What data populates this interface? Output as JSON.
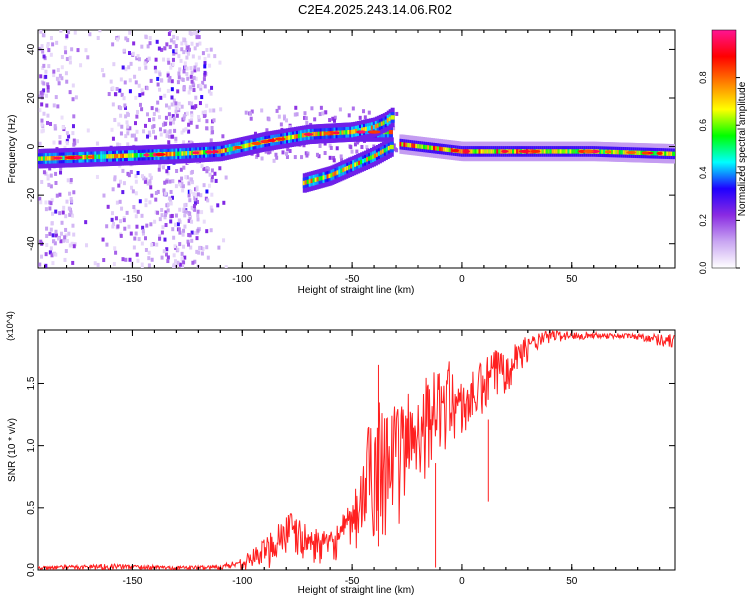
{
  "title": "C2E4.2025.243.14.06.R02",
  "chart_data": [
    {
      "type": "heatmap",
      "xlabel": "Height of straight line (km)",
      "ylabel": "Frequency (Hz)",
      "xlim": [
        -193,
        97
      ],
      "ylim": [
        -50,
        48
      ],
      "x_ticks": [
        -150,
        -100,
        -50,
        0,
        50
      ],
      "x_tick_labels": [
        "-150",
        "-100",
        "-50",
        "0",
        "50"
      ],
      "y_ticks": [
        -40,
        -20,
        0,
        20,
        40
      ],
      "y_tick_labels": [
        "-40",
        "-20",
        "0",
        "20",
        "40"
      ],
      "colorbar": {
        "label": "Normalized spectral amplitude",
        "range": [
          0,
          1
        ],
        "ticks": [
          0.0,
          0.2,
          0.4,
          0.6,
          0.8
        ],
        "tick_labels": [
          "0.0",
          "0.2",
          "0.4",
          "0.6",
          "0.8"
        ],
        "stops": [
          "#ffffff",
          "#c9a6f2",
          "#8a2be2",
          "#1f00ff",
          "#00ffff",
          "#00ff00",
          "#ffff00",
          "#ff8000",
          "#ff0000",
          "#ff1493"
        ]
      },
      "ridges": [
        {
          "name": "main",
          "points": [
            [
              -193,
              -5
            ],
            [
              -160,
              -4
            ],
            [
              -130,
              -3
            ],
            [
              -110,
              -2
            ],
            [
              -90,
              2
            ],
            [
              -70,
              5
            ],
            [
              -50,
              6
            ],
            [
              -40,
              6
            ],
            [
              -32,
              6
            ]
          ]
        },
        {
          "name": "upper",
          "points": [
            [
              -50,
              6
            ],
            [
              -40,
              8
            ],
            [
              -35,
              10
            ],
            [
              -32,
              12
            ]
          ]
        },
        {
          "name": "lower",
          "points": [
            [
              -72,
              -15
            ],
            [
              -60,
              -12
            ],
            [
              -50,
              -8
            ],
            [
              -40,
              -4
            ],
            [
              -32,
              0
            ]
          ]
        },
        {
          "name": "tail",
          "points": [
            [
              -28,
              1
            ],
            [
              0,
              -2
            ],
            [
              30,
              -2
            ],
            [
              60,
              -2
            ],
            [
              97,
              -3
            ]
          ]
        }
      ]
    },
    {
      "type": "line",
      "xlabel": "Height of straight line (km)",
      "ylabel": "SNR (10 * v/v)",
      "y_scale_label": "(x10^4)",
      "xlim": [
        -193,
        97
      ],
      "ylim": [
        0,
        1.93
      ],
      "x_ticks": [
        -150,
        -100,
        -50,
        0,
        50
      ],
      "x_tick_labels": [
        "-150",
        "-100",
        "-50",
        "0",
        "50"
      ],
      "y_ticks": [
        0,
        0.5,
        1.0,
        1.5
      ],
      "y_tick_labels": [
        "0.0",
        "0.5",
        "1.0",
        "1.5"
      ],
      "color": "#ff2020",
      "envelope": [
        {
          "x": -193,
          "lo": 0.0,
          "hi": 0.03
        },
        {
          "x": -160,
          "lo": 0.0,
          "hi": 0.05
        },
        {
          "x": -130,
          "lo": 0.0,
          "hi": 0.03
        },
        {
          "x": -110,
          "lo": 0.0,
          "hi": 0.04
        },
        {
          "x": -100,
          "lo": 0.0,
          "hi": 0.1
        },
        {
          "x": -90,
          "lo": 0.0,
          "hi": 0.25
        },
        {
          "x": -80,
          "lo": 0.05,
          "hi": 0.5
        },
        {
          "x": -70,
          "lo": 0.05,
          "hi": 0.35
        },
        {
          "x": -60,
          "lo": 0.05,
          "hi": 0.3
        },
        {
          "x": -50,
          "lo": 0.1,
          "hi": 0.55
        },
        {
          "x": -45,
          "lo": 0.1,
          "hi": 0.9
        },
        {
          "x": -40,
          "lo": 0.15,
          "hi": 1.45
        },
        {
          "x": -35,
          "lo": 0.25,
          "hi": 1.45
        },
        {
          "x": -30,
          "lo": 0.3,
          "hi": 1.3
        },
        {
          "x": -25,
          "lo": 0.4,
          "hi": 1.45
        },
        {
          "x": -20,
          "lo": 0.6,
          "hi": 1.5
        },
        {
          "x": -15,
          "lo": 0.8,
          "hi": 1.6
        },
        {
          "x": -10,
          "lo": 0.9,
          "hi": 1.6
        },
        {
          "x": -5,
          "lo": 0.95,
          "hi": 1.7
        },
        {
          "x": 0,
          "lo": 1.0,
          "hi": 1.5
        },
        {
          "x": 5,
          "lo": 1.1,
          "hi": 1.6
        },
        {
          "x": 10,
          "lo": 1.15,
          "hi": 1.7
        },
        {
          "x": 15,
          "lo": 1.3,
          "hi": 1.78
        },
        {
          "x": 20,
          "lo": 1.4,
          "hi": 1.82
        },
        {
          "x": 30,
          "lo": 1.68,
          "hi": 1.88
        },
        {
          "x": 40,
          "lo": 1.82,
          "hi": 1.93
        },
        {
          "x": 60,
          "lo": 1.86,
          "hi": 1.91
        },
        {
          "x": 80,
          "lo": 1.85,
          "hi": 1.9
        },
        {
          "x": 97,
          "lo": 1.76,
          "hi": 1.9
        }
      ],
      "spikes": [
        [
          -38,
          1.65
        ],
        [
          -12,
          0.02
        ],
        [
          12,
          0.55
        ]
      ]
    }
  ]
}
